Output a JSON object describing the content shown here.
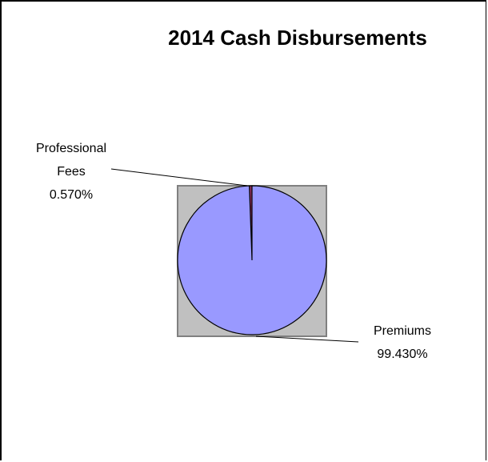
{
  "chart_data": {
    "type": "pie",
    "title": "2014 Cash Disbursements",
    "slices": [
      {
        "label_lines": [
          "Professional",
          "Fees"
        ],
        "pct_label": "0.570%",
        "value": 0.57,
        "color": "#993366"
      },
      {
        "label_lines": [
          "Premiums"
        ],
        "pct_label": "99.430%",
        "value": 99.43,
        "color": "#9999ff"
      }
    ],
    "plot_area_color": "#c0c0c0",
    "legend": "none"
  }
}
